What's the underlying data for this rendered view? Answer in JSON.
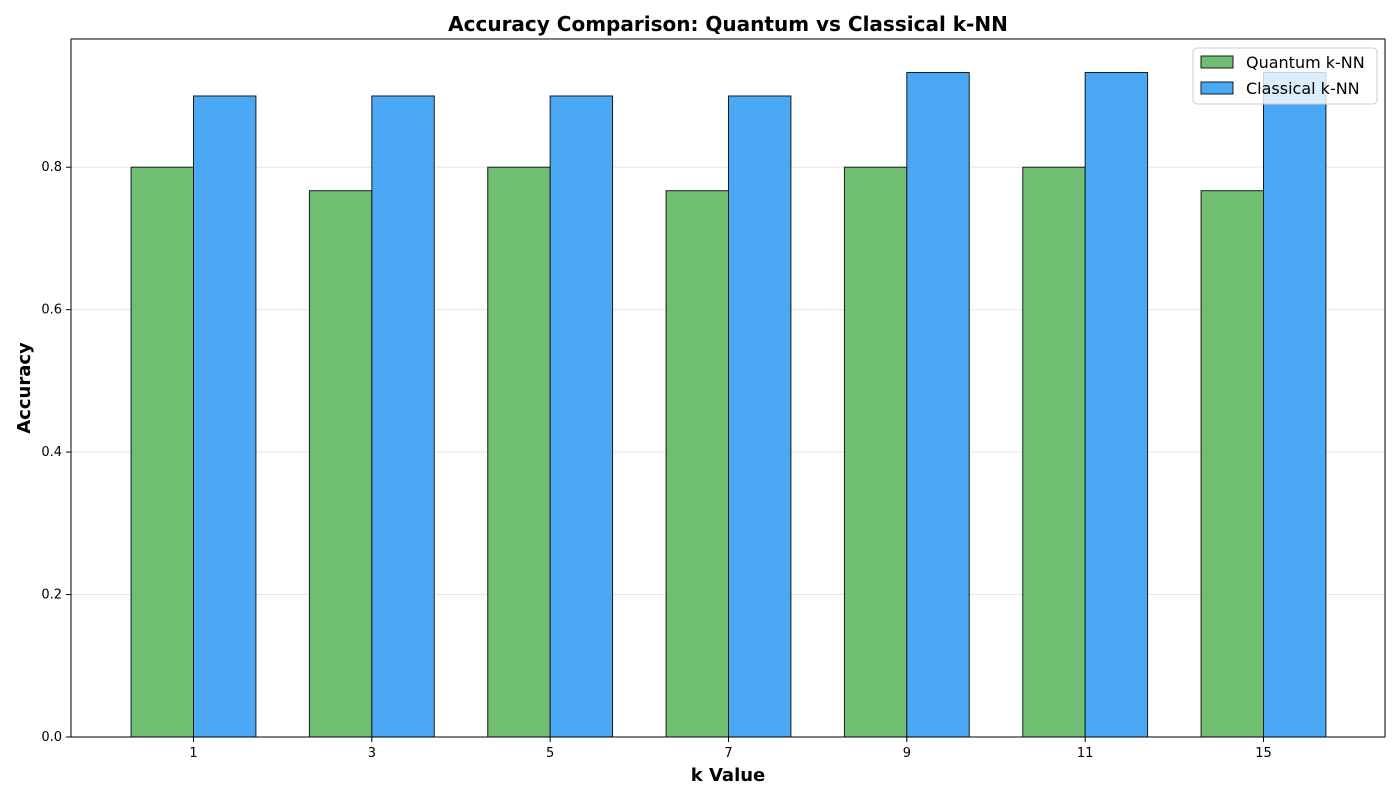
{
  "chart_data": {
    "type": "bar",
    "title": "Accuracy Comparison: Quantum vs Classical k-NN",
    "xlabel": "k Value",
    "ylabel": "Accuracy",
    "categories": [
      "1",
      "3",
      "5",
      "7",
      "9",
      "11",
      "15"
    ],
    "series": [
      {
        "name": "Quantum k-NN",
        "values": [
          0.8,
          0.767,
          0.8,
          0.767,
          0.8,
          0.8,
          0.767
        ],
        "color": "#6fbe72"
      },
      {
        "name": "Classical k-NN",
        "values": [
          0.9,
          0.9,
          0.9,
          0.9,
          0.933,
          0.933,
          0.933
        ],
        "color": "#4aa8f5"
      }
    ],
    "ylim": [
      0,
      0.98
    ],
    "yticks": [
      "0.0",
      "0.2",
      "0.4",
      "0.6",
      "0.8"
    ],
    "ytick_values": [
      0.0,
      0.2,
      0.4,
      0.6,
      0.8
    ],
    "grid": "y",
    "legend_position": "top-right",
    "bar_edge_color": "#1a1a1a"
  }
}
